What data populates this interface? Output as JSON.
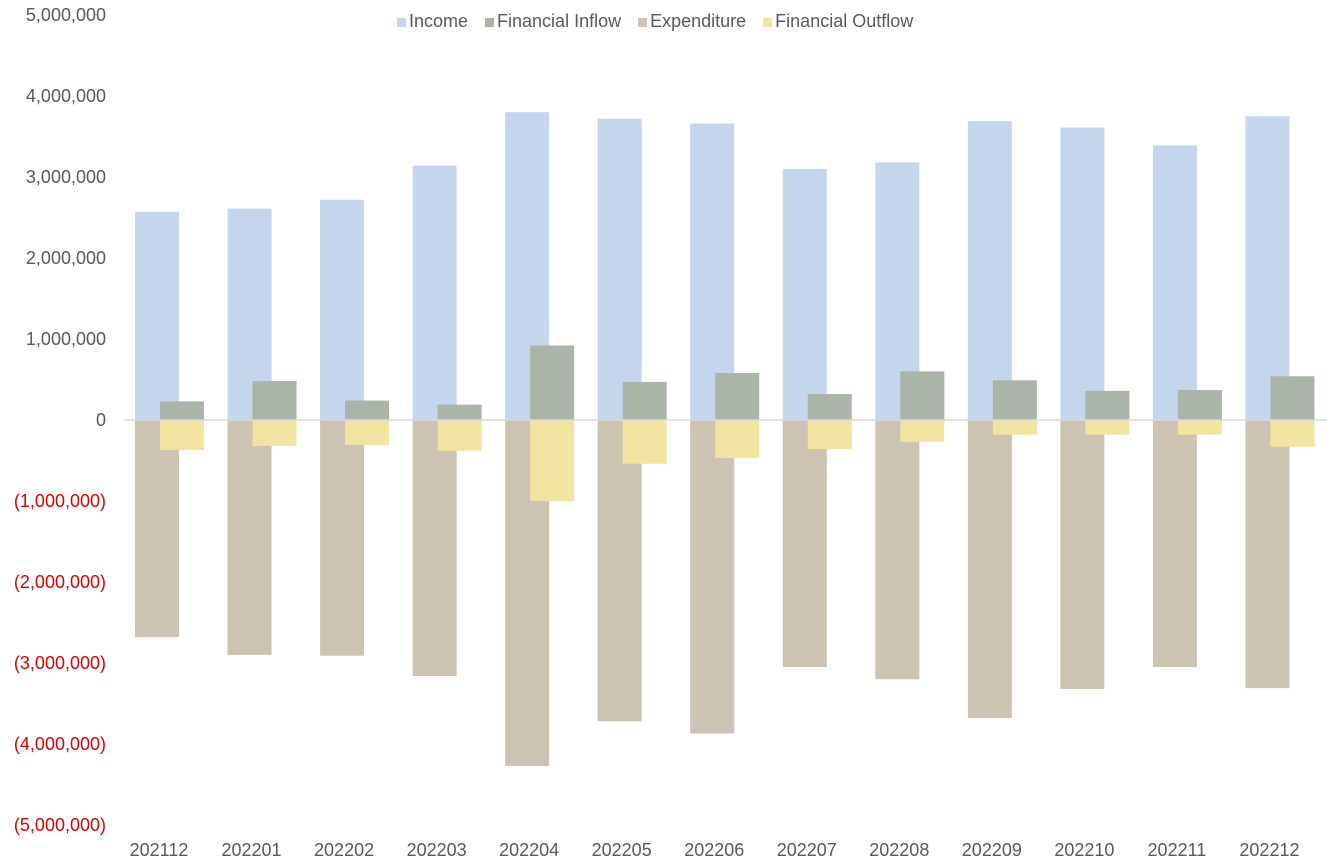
{
  "chart_data": {
    "type": "bar",
    "categories": [
      "202112",
      "202201",
      "202202",
      "202203",
      "202204",
      "202205",
      "202206",
      "202207",
      "202208",
      "202209",
      "202210",
      "202211",
      "202212"
    ],
    "series": [
      {
        "name": "Income",
        "color": "#c5d5ec",
        "values": [
          2570000,
          2610000,
          2720000,
          3140000,
          3800000,
          3720000,
          3660000,
          3100000,
          3180000,
          3690000,
          3610000,
          3390000,
          3750000
        ]
      },
      {
        "name": "Financial Inflow",
        "color": "#aab4a8",
        "values": [
          230000,
          480000,
          240000,
          190000,
          920000,
          470000,
          580000,
          320000,
          600000,
          490000,
          360000,
          370000,
          540000
        ]
      },
      {
        "name": "Expenditure",
        "color": "#ccc3b3",
        "values": [
          -2680000,
          -2900000,
          -2910000,
          -3160000,
          -4270000,
          -3720000,
          -3870000,
          -3050000,
          -3200000,
          -3680000,
          -3320000,
          -3050000,
          -3310000
        ]
      },
      {
        "name": "Financial Outflow",
        "color": "#f0e4a0",
        "values": [
          -370000,
          -320000,
          -310000,
          -380000,
          -1000000,
          -540000,
          -470000,
          -360000,
          -270000,
          -180000,
          -180000,
          -180000,
          -330000
        ]
      }
    ],
    "ylim": [
      -5000000,
      5000000
    ],
    "yticks": [
      5000000,
      4000000,
      3000000,
      2000000,
      1000000,
      0,
      -1000000,
      -2000000,
      -3000000,
      -4000000,
      -5000000
    ],
    "ytick_labels": [
      "5,000,000",
      "4,000,000",
      "3,000,000",
      "2,000,000",
      "1,000,000",
      "0",
      "(1,000,000)",
      "(2,000,000)",
      "(3,000,000)",
      "(4,000,000)",
      "(5,000,000)"
    ],
    "negative_label_color": "#e00000",
    "legend_position": "top-center",
    "grid": false,
    "title": "",
    "xlabel": "",
    "ylabel": ""
  }
}
